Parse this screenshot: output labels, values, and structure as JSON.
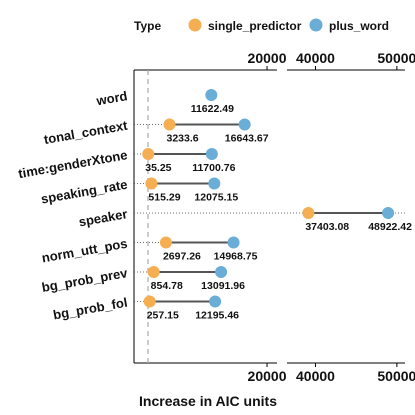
{
  "chart_data": {
    "type": "dumbbell",
    "legend": {
      "title": "Type",
      "position": "top",
      "entries": [
        {
          "name": "single_predictor",
          "color": "#F5AE52"
        },
        {
          "name": "plus_word",
          "color": "#6AADD6"
        }
      ]
    },
    "xlabel": "Increase in AIC units",
    "x_panels": [
      {
        "xlim": [
          0,
          21500
        ],
        "ticks": [
          20000
        ]
      },
      {
        "xlim": [
          36500,
          51000
        ],
        "ticks": [
          40000,
          50000
        ]
      }
    ],
    "reference_line": 0,
    "categories": [
      "word",
      "tonal_context",
      "time:genderXtone",
      "speaking_rate",
      "speaker",
      "norm_utt_pos",
      "bg_prob_prev",
      "bg_prob_fol"
    ],
    "series": [
      {
        "name": "single_predictor",
        "values": [
          null,
          3233.6,
          35.25,
          515.29,
          37403.08,
          2697.26,
          854.78,
          257.15
        ]
      },
      {
        "name": "plus_word",
        "values": [
          11622.49,
          16643.67,
          11700.76,
          12075.15,
          48922.42,
          14968.75,
          13091.96,
          12195.46
        ]
      }
    ],
    "grid": false
  }
}
